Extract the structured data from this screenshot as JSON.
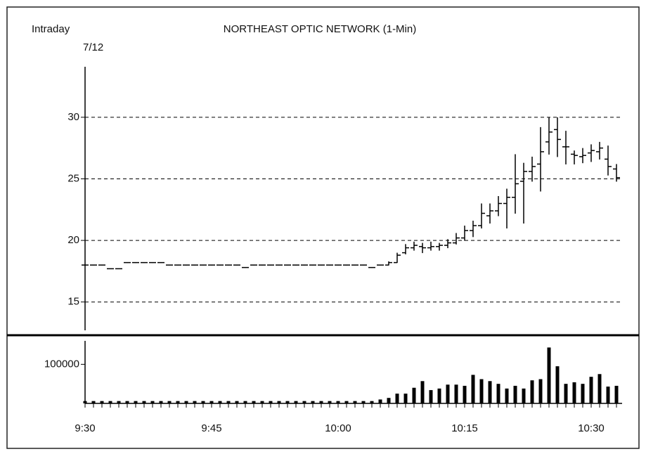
{
  "chart_data": [
    {
      "type": "ohlc",
      "title": "NORTHEAST OPTIC NETWORK  (1-Min)",
      "label": "Intraday",
      "date": "7/12",
      "color": "#000000",
      "open": [
        18,
        18,
        18,
        17.7,
        17.7,
        18.2,
        18.2,
        18.2,
        18.2,
        18.2,
        18,
        18,
        18,
        18,
        18,
        18,
        18,
        18,
        18,
        17.8,
        18,
        18,
        18,
        18,
        18,
        18,
        18,
        18,
        18,
        18,
        18,
        18,
        18,
        18,
        17.8,
        18,
        18.0,
        18.2,
        19.0,
        19.4,
        19.5,
        19.4,
        19.5,
        19.6,
        19.8,
        20.2,
        20.8,
        21.2,
        22.0,
        22.4,
        23.0,
        23.5,
        24.8,
        25.6,
        26.2,
        28.0,
        29.0,
        27.6,
        27.0,
        26.8,
        27.1,
        27.2,
        26.6,
        25.8
      ],
      "high": [
        18,
        18,
        18,
        17.7,
        17.7,
        18.2,
        18.2,
        18.2,
        18.2,
        18.2,
        18,
        18,
        18,
        18,
        18,
        18,
        18,
        18,
        18,
        17.8,
        18,
        18,
        18,
        18,
        18,
        18,
        18,
        18,
        18,
        18,
        18,
        18,
        18,
        18,
        17.8,
        18,
        18.3,
        19.0,
        19.7,
        19.9,
        19.8,
        19.9,
        19.8,
        20.1,
        20.6,
        21.2,
        21.6,
        23.0,
        23.0,
        23.6,
        24.2,
        27.0,
        26.3,
        26.8,
        29.2,
        30.0,
        30.0,
        28.9,
        27.3,
        27.5,
        27.8,
        28.0,
        27.7,
        26.2
      ],
      "low": [
        18,
        18,
        18,
        17.7,
        17.7,
        18.2,
        18.2,
        18.2,
        18.2,
        18.2,
        18,
        18,
        18,
        18,
        18,
        18,
        18,
        18,
        18,
        17.8,
        18,
        18,
        18,
        18,
        18,
        18,
        18,
        18,
        18,
        18,
        18,
        18,
        18,
        18,
        17.8,
        18,
        18.0,
        18.2,
        18.9,
        19.2,
        19.0,
        19.2,
        19.2,
        19.4,
        19.7,
        20.0,
        20.3,
        21.0,
        21.4,
        22.0,
        21.0,
        22.2,
        21.4,
        24.8,
        24.0,
        27.0,
        26.8,
        26.2,
        26.2,
        26.3,
        26.4,
        26.6,
        25.3,
        24.8
      ],
      "close": [
        18,
        18,
        18,
        17.7,
        17.7,
        18.2,
        18.2,
        18.2,
        18.2,
        18.2,
        18,
        18,
        18,
        18,
        18,
        18,
        18,
        18,
        18,
        17.8,
        18,
        18,
        18,
        18,
        18,
        18,
        18,
        18,
        18,
        18,
        18,
        18,
        18,
        18,
        17.8,
        18,
        18.2,
        18.8,
        19.4,
        19.6,
        19.4,
        19.5,
        19.6,
        19.8,
        20.2,
        20.8,
        21.2,
        22.2,
        22.4,
        23.0,
        23.5,
        24.6,
        25.6,
        26.0,
        27.2,
        28.8,
        28.2,
        27.6,
        26.9,
        26.9,
        27.3,
        27.5,
        26.0,
        25.1
      ],
      "ylim": [
        12.7,
        34.1
      ],
      "yticks": [
        15,
        20,
        25,
        30
      ],
      "grid": true
    },
    {
      "type": "bar",
      "color": "#000000",
      "categories": [
        "9:30",
        null,
        null,
        null,
        null,
        null,
        null,
        null,
        null,
        null,
        null,
        null,
        null,
        null,
        null,
        "9:45",
        null,
        null,
        null,
        null,
        null,
        null,
        null,
        null,
        null,
        null,
        null,
        null,
        null,
        null,
        "10:00",
        null,
        null,
        null,
        null,
        null,
        null,
        null,
        null,
        null,
        null,
        null,
        null,
        null,
        null,
        "10:15",
        null,
        null,
        null,
        null,
        null,
        null,
        null,
        null,
        null,
        null,
        null,
        null,
        null,
        null,
        "10:30",
        null,
        null,
        null
      ],
      "values": [
        6000,
        6000,
        6000,
        6000,
        6000,
        6000,
        6000,
        6000,
        6000,
        6000,
        6000,
        6000,
        6000,
        6000,
        6000,
        6000,
        6000,
        6000,
        6000,
        6000,
        6000,
        6000,
        6000,
        6000,
        6000,
        6000,
        6000,
        6000,
        6000,
        6000,
        6000,
        6000,
        6000,
        6000,
        6000,
        10000,
        14000,
        25000,
        25000,
        40000,
        57000,
        34000,
        38000,
        48000,
        48000,
        45000,
        73000,
        62000,
        57000,
        50000,
        38000,
        45000,
        38000,
        59000,
        62000,
        143000,
        95000,
        50000,
        54000,
        50000,
        68000,
        75000,
        43000,
        45000
      ],
      "ylim": [
        0,
        160000
      ],
      "yticks": [
        100000
      ]
    }
  ]
}
